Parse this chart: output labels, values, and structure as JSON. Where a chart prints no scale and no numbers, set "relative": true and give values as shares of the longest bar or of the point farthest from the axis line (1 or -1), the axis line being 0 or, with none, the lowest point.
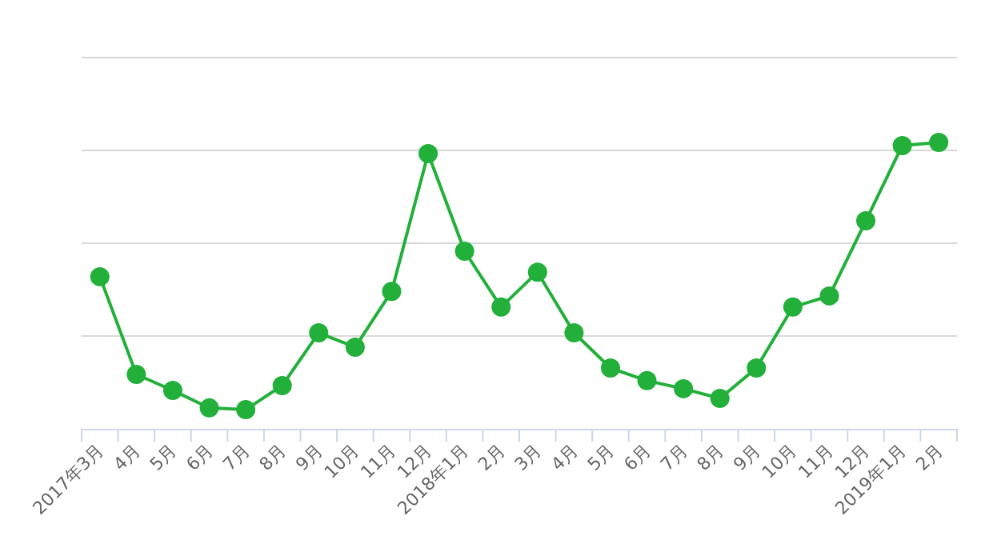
{
  "chart_data": {
    "type": "line",
    "relative": true,
    "grid": "y",
    "marker": "circle",
    "line_style": "solid",
    "categories": [
      "2017年3月",
      "4月",
      "5月",
      "6月",
      "7月",
      "8月",
      "9月",
      "10月",
      "11月",
      "12月",
      "2018年1月",
      "2月",
      "3月",
      "4月",
      "5月",
      "6月",
      "7月",
      "8月",
      "9月",
      "10月",
      "11月",
      "12月",
      "2019年1月",
      "2月"
    ],
    "series": [
      {
        "color": "#22b03a",
        "values": [
          0.531,
          0.19,
          0.134,
          0.073,
          0.067,
          0.151,
          0.335,
          0.285,
          0.48,
          0.961,
          0.62,
          0.425,
          0.547,
          0.335,
          0.212,
          0.168,
          0.14,
          0.106,
          0.212,
          0.425,
          0.464,
          0.726,
          0.989,
          1
        ]
      }
    ]
  }
}
